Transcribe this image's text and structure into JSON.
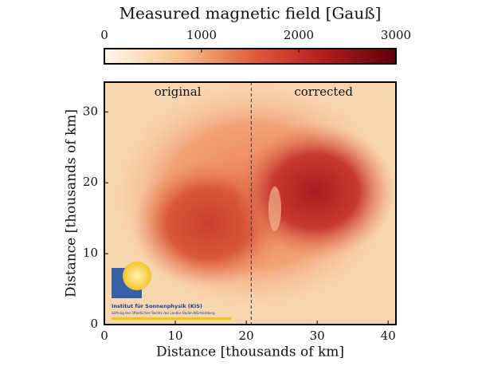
{
  "chart_data": {
    "type": "heatmap",
    "title": "Measured magnetic field [Gauß]",
    "xlabel": "Distance [thousands of km]",
    "ylabel": "Distance [thousands of km]",
    "xlim": [
      0,
      41.1
    ],
    "ylim": [
      0,
      34.2
    ],
    "xticks": [
      0,
      10,
      20,
      30,
      40
    ],
    "yticks": [
      0,
      10,
      20,
      30
    ],
    "divider_x": 20.7,
    "annotations": [
      "original",
      "corrected"
    ],
    "colorbar": {
      "clim": [
        0,
        3000
      ],
      "ticks": [
        0,
        1000,
        2000,
        3000
      ],
      "colors": [
        "#fdf7ea",
        "#f9c590",
        "#e2603c",
        "#b21d1f",
        "#5e0008"
      ]
    },
    "logo": {
      "name": "Institut für Sonnenphysik (KIS)",
      "subtitle": "Stiftung des öffentlichen Rechts des Landes Baden-Württemberg"
    }
  }
}
